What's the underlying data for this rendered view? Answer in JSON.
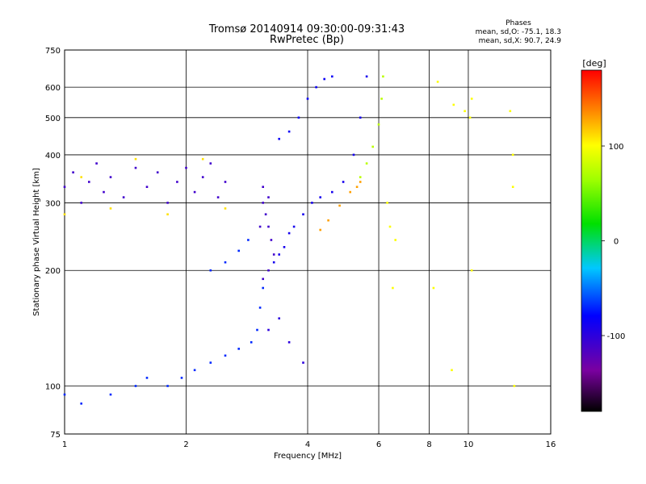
{
  "chart_data": {
    "type": "scatter",
    "title": "Tromsø 20140914 09:30:00-09:31:43",
    "subtitle": "RwPretec (Bp)",
    "xlabel": "Frequency [MHz]",
    "ylabel": "Stationary phase Virtual Height [km]",
    "xscale": "log",
    "yscale": "log",
    "xlim": [
      1,
      16
    ],
    "ylim": [
      75,
      750
    ],
    "x_ticks": [
      1,
      2,
      4,
      6,
      8,
      10,
      16
    ],
    "x_tick_labels": [
      "1",
      "2",
      "4",
      "6",
      "8",
      "10",
      "16"
    ],
    "y_ticks": [
      75,
      100,
      200,
      300,
      400,
      500,
      600,
      750
    ],
    "y_tick_labels": [
      "75",
      "100",
      "200",
      "300",
      "400",
      "500",
      "600",
      "750"
    ],
    "grid": true,
    "stats_block": {
      "heading": "Phases",
      "line_o": "mean, sd,O:  -75.1, 18.3",
      "line_x": "mean, sd,X:  90.7, 24.9"
    },
    "colorbar": {
      "label": "[deg]",
      "range": [
        -180,
        180
      ],
      "ticks": [
        100,
        0,
        -100
      ],
      "tick_labels": [
        "100",
        "0",
        "-100"
      ],
      "colormap": "rainbow (black-purple-blue-cyan-green-yellow-orange-red)"
    },
    "series": [
      {
        "values": [
          [
            1.0,
            330
          ],
          [
            1.05,
            360
          ],
          [
            1.1,
            300
          ],
          [
            1.15,
            340
          ],
          [
            1.2,
            380
          ],
          [
            1.25,
            320
          ],
          [
            1.3,
            350
          ],
          [
            1.4,
            310
          ],
          [
            1.5,
            370
          ],
          [
            1.6,
            330
          ],
          [
            1.7,
            360
          ],
          [
            1.8,
            300
          ],
          [
            1.9,
            340
          ],
          [
            2.0,
            370
          ],
          [
            2.1,
            320
          ],
          [
            2.2,
            350
          ],
          [
            2.3,
            380
          ],
          [
            2.4,
            310
          ],
          [
            2.5,
            340
          ]
        ],
        "phase": -110
      },
      {
        "values": [
          [
            1.0,
            280
          ],
          [
            1.1,
            350
          ],
          [
            1.3,
            290
          ],
          [
            1.5,
            390
          ],
          [
            1.8,
            280
          ],
          [
            2.2,
            390
          ],
          [
            2.5,
            290
          ]
        ],
        "phase": 110
      },
      {
        "values": [
          [
            3.1,
            330
          ],
          [
            3.1,
            300
          ],
          [
            3.15,
            280
          ],
          [
            3.2,
            260
          ],
          [
            3.25,
            240
          ],
          [
            3.3,
            220
          ],
          [
            3.2,
            200
          ],
          [
            3.1,
            190
          ],
          [
            3.05,
            260
          ],
          [
            3.2,
            310
          ]
        ],
        "phase": -110
      },
      {
        "values": [
          [
            3.3,
            210
          ],
          [
            3.4,
            220
          ],
          [
            3.5,
            230
          ],
          [
            3.6,
            250
          ],
          [
            3.7,
            260
          ],
          [
            3.9,
            280
          ],
          [
            4.1,
            300
          ],
          [
            4.3,
            310
          ],
          [
            4.6,
            320
          ],
          [
            4.9,
            340
          ],
          [
            5.2,
            400
          ],
          [
            5.4,
            500
          ],
          [
            5.6,
            640
          ]
        ],
        "phase": -90
      },
      {
        "values": [
          [
            3.4,
            440
          ],
          [
            3.6,
            460
          ],
          [
            3.8,
            500
          ],
          [
            4.0,
            560
          ],
          [
            4.2,
            600
          ],
          [
            4.4,
            630
          ],
          [
            4.6,
            640
          ]
        ],
        "phase": -85
      },
      {
        "values": [
          [
            4.3,
            255
          ],
          [
            4.5,
            270
          ],
          [
            4.8,
            295
          ],
          [
            5.1,
            320
          ],
          [
            5.3,
            330
          ],
          [
            5.4,
            340
          ]
        ],
        "phase": 130
      },
      {
        "values": [
          [
            5.4,
            350
          ],
          [
            5.6,
            380
          ],
          [
            5.8,
            420
          ],
          [
            6.0,
            480
          ],
          [
            6.1,
            560
          ],
          [
            6.15,
            640
          ]
        ],
        "phase": 75
      },
      {
        "values": [
          [
            1.8,
            100
          ],
          [
            1.95,
            105
          ],
          [
            2.1,
            110
          ],
          [
            2.3,
            115
          ],
          [
            2.5,
            120
          ],
          [
            2.7,
            125
          ],
          [
            2.9,
            130
          ],
          [
            3.0,
            140
          ],
          [
            3.05,
            160
          ],
          [
            3.1,
            180
          ]
        ],
        "phase": -70
      },
      {
        "values": [
          [
            2.3,
            200
          ],
          [
            2.5,
            210
          ],
          [
            2.7,
            225
          ],
          [
            2.85,
            240
          ]
        ],
        "phase": -70
      },
      {
        "values": [
          [
            3.2,
            140
          ],
          [
            3.4,
            150
          ],
          [
            3.6,
            130
          ],
          [
            3.9,
            115
          ]
        ],
        "phase": -100
      },
      {
        "values": [
          [
            1.0,
            95
          ],
          [
            1.1,
            90
          ],
          [
            1.3,
            95
          ],
          [
            1.5,
            100
          ],
          [
            1.6,
            105
          ]
        ],
        "phase": -70
      },
      {
        "values": [
          [
            6.3,
            300
          ],
          [
            6.4,
            260
          ],
          [
            6.6,
            240
          ],
          [
            6.5,
            180
          ],
          [
            8.2,
            180
          ],
          [
            8.4,
            620
          ],
          [
            9.2,
            540
          ],
          [
            9.8,
            520
          ],
          [
            10.1,
            500
          ],
          [
            10.2,
            560
          ],
          [
            12.7,
            520
          ],
          [
            12.9,
            400
          ],
          [
            12.9,
            330
          ],
          [
            13.0,
            100
          ],
          [
            10.2,
            200
          ],
          [
            9.1,
            110
          ]
        ],
        "phase": 100
      }
    ]
  }
}
